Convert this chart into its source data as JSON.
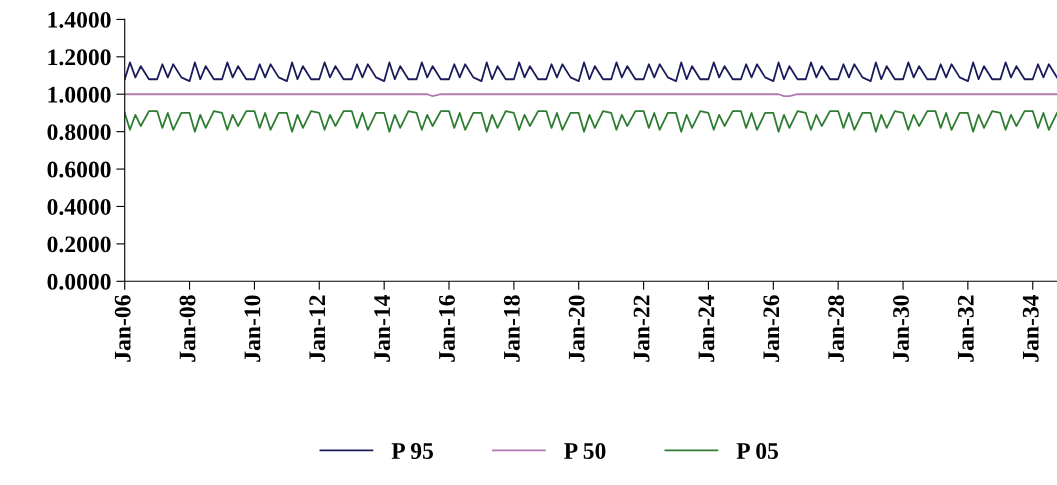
{
  "chart_data": {
    "type": "line",
    "x": [
      "2006-01",
      "2006-03",
      "2006-05",
      "2006-07",
      "2006-10",
      "2007-01",
      "2007-03",
      "2007-05",
      "2007-07",
      "2007-10",
      "2008-01",
      "2008-03",
      "2008-05",
      "2008-07",
      "2008-10",
      "2009-01",
      "2009-03",
      "2009-05",
      "2009-07",
      "2009-10",
      "2010-01",
      "2010-03",
      "2010-05",
      "2010-07",
      "2010-10",
      "2011-01",
      "2011-03",
      "2011-05",
      "2011-07",
      "2011-10",
      "2012-01",
      "2012-03",
      "2012-05",
      "2012-07",
      "2012-10",
      "2013-01",
      "2013-03",
      "2013-05",
      "2013-07",
      "2013-10",
      "2014-01",
      "2014-03",
      "2014-05",
      "2014-07",
      "2014-10",
      "2015-01",
      "2015-03",
      "2015-05",
      "2015-07",
      "2015-10",
      "2016-01",
      "2016-03",
      "2016-05",
      "2016-07",
      "2016-10",
      "2017-01",
      "2017-03",
      "2017-05",
      "2017-07",
      "2017-10",
      "2018-01",
      "2018-03",
      "2018-05",
      "2018-07",
      "2018-10",
      "2019-01",
      "2019-03",
      "2019-05",
      "2019-07",
      "2019-10",
      "2020-01",
      "2020-03",
      "2020-05",
      "2020-07",
      "2020-10",
      "2021-01",
      "2021-03",
      "2021-05",
      "2021-07",
      "2021-10",
      "2022-01",
      "2022-03",
      "2022-05",
      "2022-07",
      "2022-10",
      "2023-01",
      "2023-03",
      "2023-05",
      "2023-07",
      "2023-10",
      "2024-01",
      "2024-03",
      "2024-05",
      "2024-07",
      "2024-10",
      "2025-01",
      "2025-03",
      "2025-05",
      "2025-07",
      "2025-10",
      "2026-01",
      "2026-03",
      "2026-05",
      "2026-07",
      "2026-10",
      "2027-01",
      "2027-03",
      "2027-05",
      "2027-07",
      "2027-10",
      "2028-01",
      "2028-03",
      "2028-05",
      "2028-07",
      "2028-10",
      "2029-01",
      "2029-03",
      "2029-05",
      "2029-07",
      "2029-10",
      "2030-01",
      "2030-03",
      "2030-05",
      "2030-07",
      "2030-10",
      "2031-01",
      "2031-03",
      "2031-05",
      "2031-07",
      "2031-10",
      "2032-01",
      "2032-03",
      "2032-05",
      "2032-07",
      "2032-10",
      "2033-01",
      "2033-03",
      "2033-05",
      "2033-07",
      "2033-10",
      "2034-01",
      "2034-03",
      "2034-05",
      "2034-07",
      "2034-10"
    ],
    "series": [
      {
        "name": "P 95",
        "color": "#1c1c5c",
        "values": [
          1.08,
          1.17,
          1.09,
          1.15,
          1.08,
          1.08,
          1.16,
          1.09,
          1.16,
          1.09,
          1.07,
          1.17,
          1.08,
          1.15,
          1.08,
          1.08,
          1.17,
          1.09,
          1.15,
          1.08,
          1.08,
          1.16,
          1.09,
          1.16,
          1.09,
          1.07,
          1.17,
          1.08,
          1.15,
          1.08,
          1.08,
          1.17,
          1.09,
          1.15,
          1.08,
          1.08,
          1.16,
          1.09,
          1.16,
          1.09,
          1.07,
          1.17,
          1.08,
          1.15,
          1.08,
          1.08,
          1.17,
          1.09,
          1.15,
          1.08,
          1.08,
          1.16,
          1.09,
          1.16,
          1.09,
          1.07,
          1.17,
          1.08,
          1.15,
          1.08,
          1.08,
          1.17,
          1.09,
          1.15,
          1.08,
          1.08,
          1.16,
          1.09,
          1.16,
          1.09,
          1.07,
          1.17,
          1.08,
          1.15,
          1.08,
          1.08,
          1.17,
          1.09,
          1.15,
          1.08,
          1.08,
          1.16,
          1.09,
          1.16,
          1.09,
          1.07,
          1.17,
          1.08,
          1.15,
          1.08,
          1.08,
          1.17,
          1.09,
          1.15,
          1.08,
          1.08,
          1.16,
          1.09,
          1.16,
          1.09,
          1.07,
          1.17,
          1.08,
          1.15,
          1.08,
          1.08,
          1.17,
          1.09,
          1.15,
          1.08,
          1.08,
          1.16,
          1.09,
          1.16,
          1.09,
          1.07,
          1.17,
          1.08,
          1.15,
          1.08,
          1.08,
          1.17,
          1.09,
          1.15,
          1.08,
          1.08,
          1.16,
          1.09,
          1.16,
          1.09,
          1.07,
          1.17,
          1.08,
          1.15,
          1.08,
          1.08,
          1.17,
          1.09,
          1.15,
          1.08,
          1.08,
          1.16,
          1.09,
          1.16,
          1.09
        ]
      },
      {
        "name": "P 50",
        "color": "#b07ab0",
        "values": [
          1.0,
          1.0,
          1.0,
          1.0,
          1.0,
          1.0,
          1.0,
          1.0,
          1.0,
          1.0,
          1.0,
          1.0,
          1.0,
          1.0,
          1.0,
          1.0,
          1.0,
          1.0,
          1.0,
          1.0,
          1.0,
          1.0,
          1.0,
          1.0,
          1.0,
          1.0,
          1.0,
          1.0,
          1.0,
          1.0,
          1.0,
          1.0,
          1.0,
          1.0,
          1.0,
          1.0,
          1.0,
          1.0,
          1.0,
          1.0,
          1.0,
          1.0,
          1.0,
          1.0,
          1.0,
          1.0,
          1.0,
          1.0,
          0.99,
          1.0,
          1.0,
          1.0,
          1.0,
          1.0,
          1.0,
          1.0,
          1.0,
          1.0,
          1.0,
          1.0,
          1.0,
          1.0,
          1.0,
          1.0,
          1.0,
          1.0,
          1.0,
          1.0,
          1.0,
          1.0,
          1.0,
          1.0,
          1.0,
          1.0,
          1.0,
          1.0,
          1.0,
          1.0,
          1.0,
          1.0,
          1.0,
          1.0,
          1.0,
          1.0,
          1.0,
          1.0,
          1.0,
          1.0,
          1.0,
          1.0,
          1.0,
          1.0,
          1.0,
          1.0,
          1.0,
          1.0,
          1.0,
          1.0,
          1.0,
          1.0,
          1.0,
          1.0,
          0.99,
          0.99,
          1.0,
          1.0,
          1.0,
          1.0,
          1.0,
          1.0,
          1.0,
          1.0,
          1.0,
          1.0,
          1.0,
          1.0,
          1.0,
          1.0,
          1.0,
          1.0,
          1.0,
          1.0,
          1.0,
          1.0,
          1.0,
          1.0,
          1.0,
          1.0,
          1.0,
          1.0,
          1.0,
          1.0,
          1.0,
          1.0,
          1.0,
          1.0,
          1.0,
          1.0,
          1.0,
          1.0,
          1.0,
          1.0,
          1.0,
          1.0,
          1.0
        ]
      },
      {
        "name": "P 05",
        "color": "#2e7d32",
        "values": [
          0.9,
          0.81,
          0.89,
          0.83,
          0.91,
          0.91,
          0.82,
          0.9,
          0.81,
          0.9,
          0.9,
          0.8,
          0.89,
          0.82,
          0.91,
          0.9,
          0.81,
          0.89,
          0.83,
          0.91,
          0.91,
          0.82,
          0.9,
          0.81,
          0.9,
          0.9,
          0.8,
          0.89,
          0.82,
          0.91,
          0.9,
          0.81,
          0.89,
          0.83,
          0.91,
          0.91,
          0.82,
          0.9,
          0.81,
          0.9,
          0.9,
          0.8,
          0.89,
          0.82,
          0.91,
          0.9,
          0.81,
          0.89,
          0.83,
          0.91,
          0.91,
          0.82,
          0.9,
          0.81,
          0.9,
          0.9,
          0.8,
          0.89,
          0.82,
          0.91,
          0.9,
          0.81,
          0.89,
          0.83,
          0.91,
          0.91,
          0.82,
          0.9,
          0.81,
          0.9,
          0.9,
          0.8,
          0.89,
          0.82,
          0.91,
          0.9,
          0.81,
          0.89,
          0.83,
          0.91,
          0.91,
          0.82,
          0.9,
          0.81,
          0.9,
          0.9,
          0.8,
          0.89,
          0.82,
          0.91,
          0.9,
          0.81,
          0.89,
          0.83,
          0.91,
          0.91,
          0.82,
          0.9,
          0.81,
          0.9,
          0.9,
          0.8,
          0.89,
          0.82,
          0.91,
          0.9,
          0.81,
          0.89,
          0.83,
          0.91,
          0.91,
          0.82,
          0.9,
          0.81,
          0.9,
          0.9,
          0.8,
          0.89,
          0.82,
          0.91,
          0.9,
          0.81,
          0.89,
          0.83,
          0.91,
          0.91,
          0.82,
          0.9,
          0.81,
          0.9,
          0.9,
          0.8,
          0.89,
          0.82,
          0.91,
          0.9,
          0.81,
          0.89,
          0.83,
          0.91,
          0.91,
          0.82,
          0.9,
          0.81,
          0.9
        ]
      }
    ],
    "xlim": [
      "2006-01",
      "2034-10"
    ],
    "xticks": [
      {
        "value": "2006-01",
        "label": "Jan-06"
      },
      {
        "value": "2008-01",
        "label": "Jan-08"
      },
      {
        "value": "2010-01",
        "label": "Jan-10"
      },
      {
        "value": "2012-01",
        "label": "Jan-12"
      },
      {
        "value": "2014-01",
        "label": "Jan-14"
      },
      {
        "value": "2016-01",
        "label": "Jan-16"
      },
      {
        "value": "2018-01",
        "label": "Jan-18"
      },
      {
        "value": "2020-01",
        "label": "Jan-20"
      },
      {
        "value": "2022-01",
        "label": "Jan-22"
      },
      {
        "value": "2024-01",
        "label": "Jan-24"
      },
      {
        "value": "2026-01",
        "label": "Jan-26"
      },
      {
        "value": "2028-01",
        "label": "Jan-28"
      },
      {
        "value": "2030-01",
        "label": "Jan-30"
      },
      {
        "value": "2032-01",
        "label": "Jan-32"
      },
      {
        "value": "2034-01",
        "label": "Jan-34"
      }
    ],
    "ylim": [
      0,
      1.4
    ],
    "yticks": [
      {
        "value": 0,
        "label": "0.0000"
      },
      {
        "value": 0.2,
        "label": "0.2000"
      },
      {
        "value": 0.4,
        "label": "0.4000"
      },
      {
        "value": 0.6,
        "label": "0.6000"
      },
      {
        "value": 0.8,
        "label": "0.8000"
      },
      {
        "value": 1.0,
        "label": "1.0000"
      },
      {
        "value": 1.2,
        "label": "1.2000"
      },
      {
        "value": 1.4,
        "label": "1.4000"
      }
    ],
    "legend": "bottom",
    "marker": "none",
    "line_style": "solid"
  }
}
